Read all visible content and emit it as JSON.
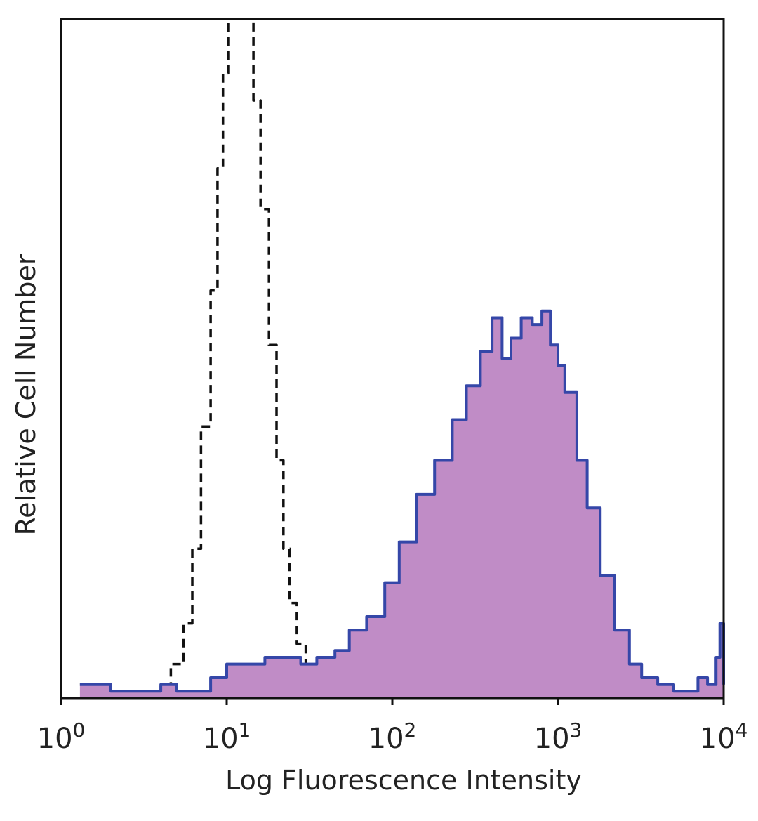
{
  "chart_data": {
    "type": "area",
    "title": "",
    "xlabel": "Log Fluorescence Intensity",
    "ylabel": "Relative Cell Number",
    "x_scale": "log",
    "xlim": [
      1,
      10000
    ],
    "ylim": [
      0,
      100
    ],
    "grid": false,
    "legend": "none",
    "x_ticks": [
      {
        "base": "10",
        "exp": "0",
        "value": 1
      },
      {
        "base": "10",
        "exp": "1",
        "value": 10
      },
      {
        "base": "10",
        "exp": "2",
        "value": 100
      },
      {
        "base": "10",
        "exp": "3",
        "value": 1000
      },
      {
        "base": "10",
        "exp": "4",
        "value": 10000
      }
    ],
    "series": [
      {
        "style": "dashed",
        "color": "#111111",
        "fill": "none",
        "points": [
          [
            1.3,
            2
          ],
          [
            2.0,
            1
          ],
          [
            3.0,
            1
          ],
          [
            4.0,
            2
          ],
          [
            4.6,
            5
          ],
          [
            5.5,
            11
          ],
          [
            6.2,
            22
          ],
          [
            7.0,
            40
          ],
          [
            8.0,
            60
          ],
          [
            8.8,
            78
          ],
          [
            9.5,
            92
          ],
          [
            10.2,
            100
          ],
          [
            11.0,
            100
          ],
          [
            12.0,
            100
          ],
          [
            13.3,
            100
          ],
          [
            14.5,
            88
          ],
          [
            16.0,
            72
          ],
          [
            18.0,
            52
          ],
          [
            20.0,
            35
          ],
          [
            22.0,
            22
          ],
          [
            24.0,
            14
          ],
          [
            26.5,
            8
          ],
          [
            30.0,
            3
          ],
          [
            35.0,
            1
          ],
          [
            40.0,
            0
          ]
        ]
      },
      {
        "style": "solid",
        "color": "#3547a8",
        "fill": "#c08cc6",
        "points": [
          [
            1.3,
            2
          ],
          [
            2.0,
            1
          ],
          [
            3.0,
            1
          ],
          [
            4.0,
            2
          ],
          [
            5.0,
            1
          ],
          [
            6.5,
            1
          ],
          [
            8.0,
            3
          ],
          [
            10.0,
            5
          ],
          [
            13.0,
            5
          ],
          [
            17.0,
            6
          ],
          [
            22.0,
            6
          ],
          [
            28.0,
            5
          ],
          [
            35.0,
            6
          ],
          [
            45.0,
            7
          ],
          [
            55.0,
            10
          ],
          [
            70.0,
            12
          ],
          [
            90.0,
            17
          ],
          [
            110.0,
            23
          ],
          [
            140.0,
            30
          ],
          [
            180.0,
            35
          ],
          [
            230.0,
            41
          ],
          [
            280.0,
            46
          ],
          [
            340.0,
            51
          ],
          [
            400.0,
            56
          ],
          [
            460.0,
            50
          ],
          [
            520.0,
            53
          ],
          [
            600.0,
            56
          ],
          [
            700.0,
            55
          ],
          [
            800.0,
            57
          ],
          [
            900.0,
            52
          ],
          [
            1000.0,
            49
          ],
          [
            1100.0,
            45
          ],
          [
            1300.0,
            35
          ],
          [
            1500.0,
            28
          ],
          [
            1800.0,
            18
          ],
          [
            2200.0,
            10
          ],
          [
            2700.0,
            5
          ],
          [
            3200.0,
            3
          ],
          [
            4000.0,
            2
          ],
          [
            5000.0,
            1
          ],
          [
            6000.0,
            1
          ],
          [
            7000.0,
            3
          ],
          [
            8000.0,
            2
          ],
          [
            9000.0,
            6
          ],
          [
            9500.0,
            11
          ],
          [
            10000.0,
            2
          ]
        ]
      }
    ]
  }
}
